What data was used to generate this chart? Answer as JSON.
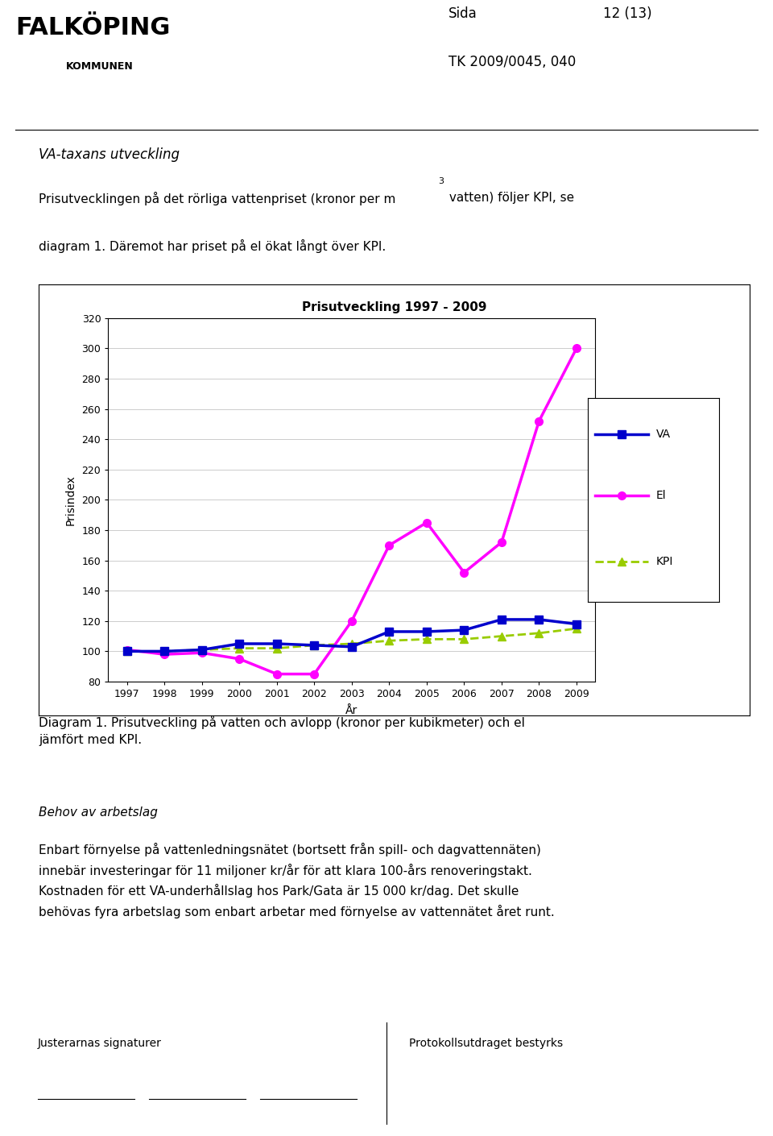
{
  "title": "Prisutveckling 1997 - 2009",
  "xlabel": "År",
  "ylabel": "Prisindex",
  "years": [
    1997,
    1998,
    1999,
    2000,
    2001,
    2002,
    2003,
    2004,
    2005,
    2006,
    2007,
    2008,
    2009
  ],
  "VA": [
    100,
    100,
    101,
    105,
    105,
    104,
    103,
    113,
    113,
    114,
    121,
    121,
    118
  ],
  "El": [
    101,
    98,
    99,
    95,
    85,
    85,
    120,
    170,
    185,
    152,
    172,
    252,
    300
  ],
  "KPI": [
    100,
    100,
    101,
    102,
    102,
    104,
    105,
    107,
    108,
    108,
    110,
    112,
    115
  ],
  "VA_color": "#0000CC",
  "El_color": "#FF00FF",
  "KPI_color": "#99CC00",
  "ylim": [
    80,
    320
  ],
  "yticks": [
    80,
    100,
    120,
    140,
    160,
    180,
    200,
    220,
    240,
    260,
    280,
    300,
    320
  ],
  "background_color": "#ffffff",
  "chart_bg": "#ffffff",
  "grid_color": "#cccccc",
  "header_text1": "VA-taxans utveckling",
  "header_text2": "Prisutvecklingen på det rörliga vattenpriset (kronor per m",
  "header_text2b": " vatten) följer KPI, se",
  "header_text3": "diagram 1. Däremot har priset på el ökat långt över KPI.",
  "page_text": "Sida",
  "page_num": "12 (13)",
  "tk_text": "TK 2009/0045, 040",
  "diagram_caption": "Diagram 1. Prisutveckling på vatten och avlopp (kronor per kubikmeter) och el\njämfört med KPI.",
  "body_text1": "Behov av arbetslag",
  "body_text2": "Enbart förnyelse på vattenledningsnätet (bortsett från spill- och dagvattennäten)\ninnebär investeringar för 11 miljoner kr/år för att klara 100-års renoveringstakt.\nKostnaden för ett VA-underhållslag hos Park/Gata är 15 000 kr/dag. Det skulle\nbehövas fyra arbetslag som enbart arbetar med förnyelse av vattennätet året runt.",
  "footer_left": "Justerarnas signaturer",
  "footer_right": "Protokollsutdraget bestyrks"
}
